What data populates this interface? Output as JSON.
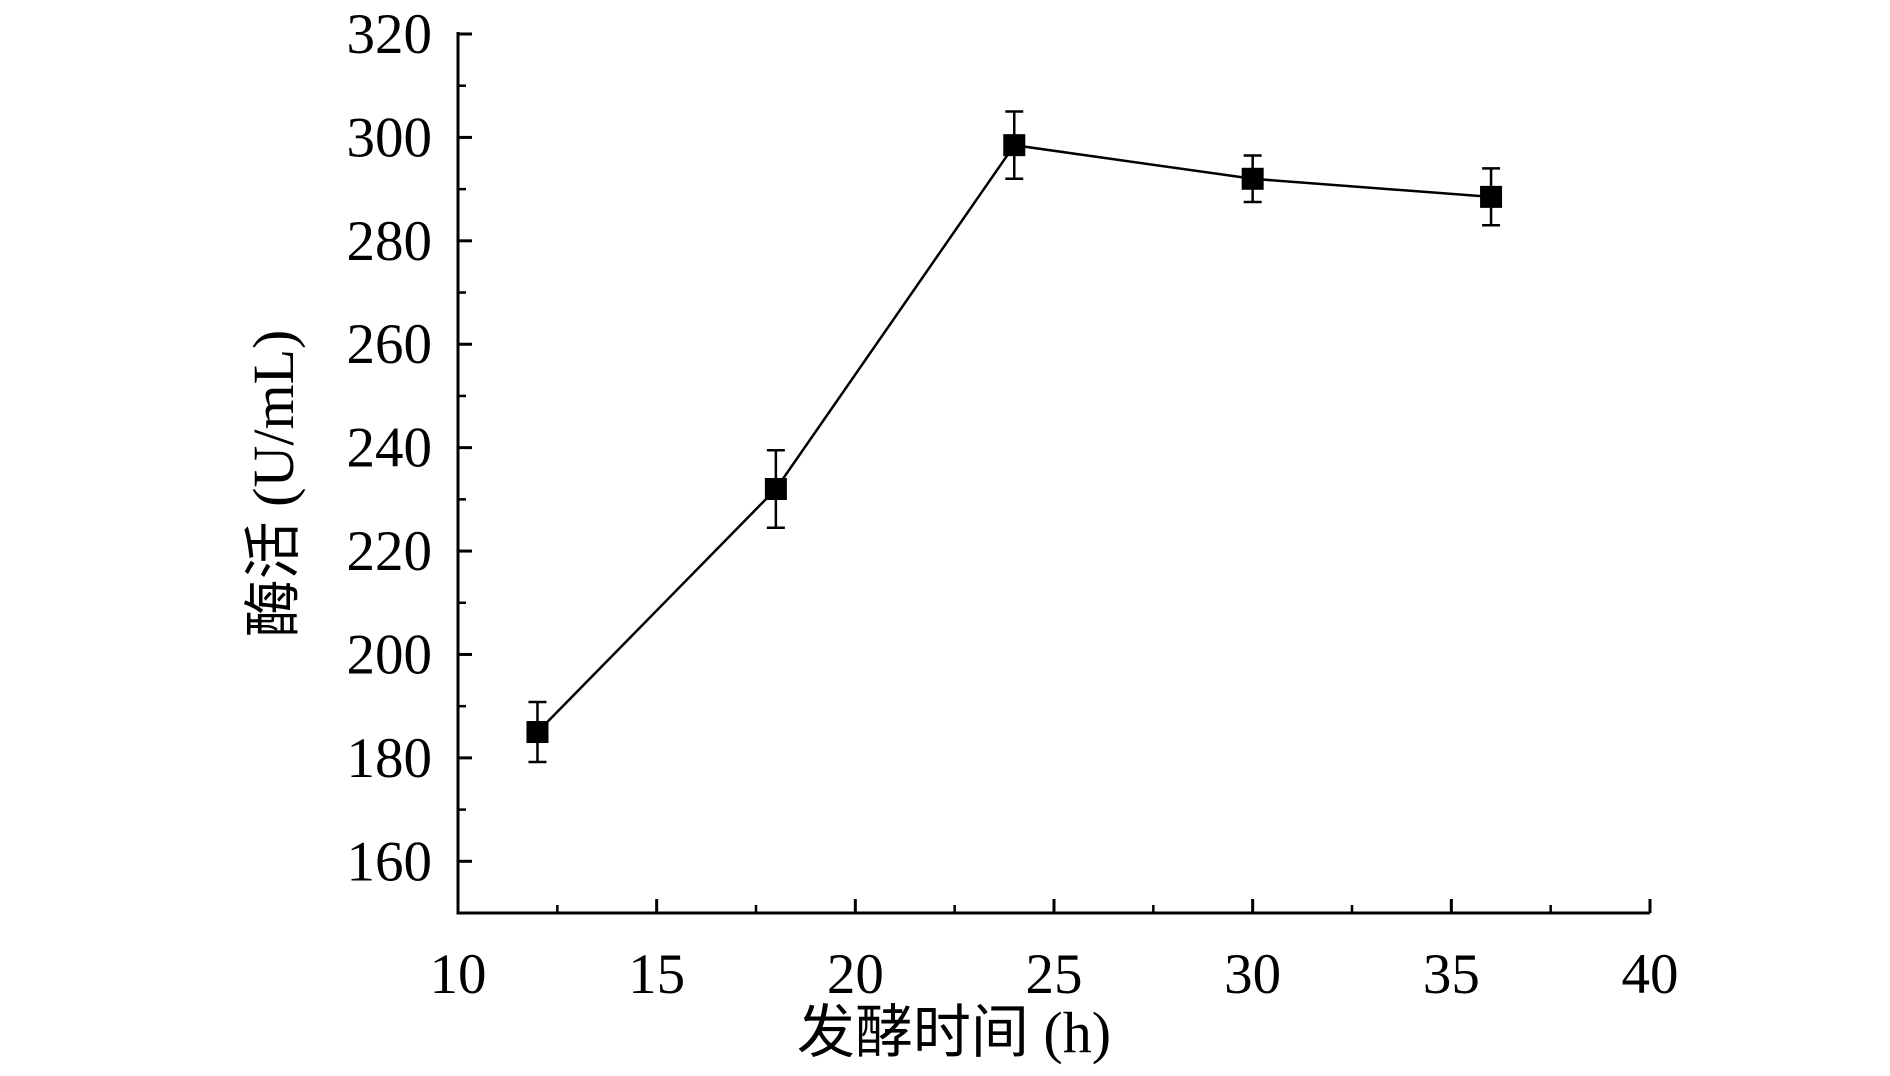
{
  "chart_data": {
    "type": "line",
    "title": "",
    "xlabel": "发酵时间 (h)",
    "ylabel": "酶活 (U/mL)",
    "xlim": [
      10,
      40
    ],
    "ylim": [
      150,
      320
    ],
    "x_ticks": [
      10,
      15,
      20,
      25,
      30,
      35,
      40
    ],
    "x_tick_labels": [
      "10",
      "15",
      "20",
      "25",
      "30",
      "35",
      "40"
    ],
    "y_ticks": [
      160,
      180,
      200,
      220,
      240,
      260,
      280,
      300,
      320
    ],
    "y_tick_labels": [
      "160",
      "180",
      "200",
      "220",
      "240",
      "260",
      "280",
      "300",
      "320"
    ],
    "grid": false,
    "marker": "square",
    "series_color": "#000000",
    "series": [
      {
        "x": [
          12,
          18,
          24,
          30,
          36
        ],
        "y": [
          185,
          232,
          298.5,
          292,
          288.5
        ],
        "error": [
          5.8,
          7.5,
          6.5,
          4.5,
          5.5
        ]
      }
    ]
  }
}
